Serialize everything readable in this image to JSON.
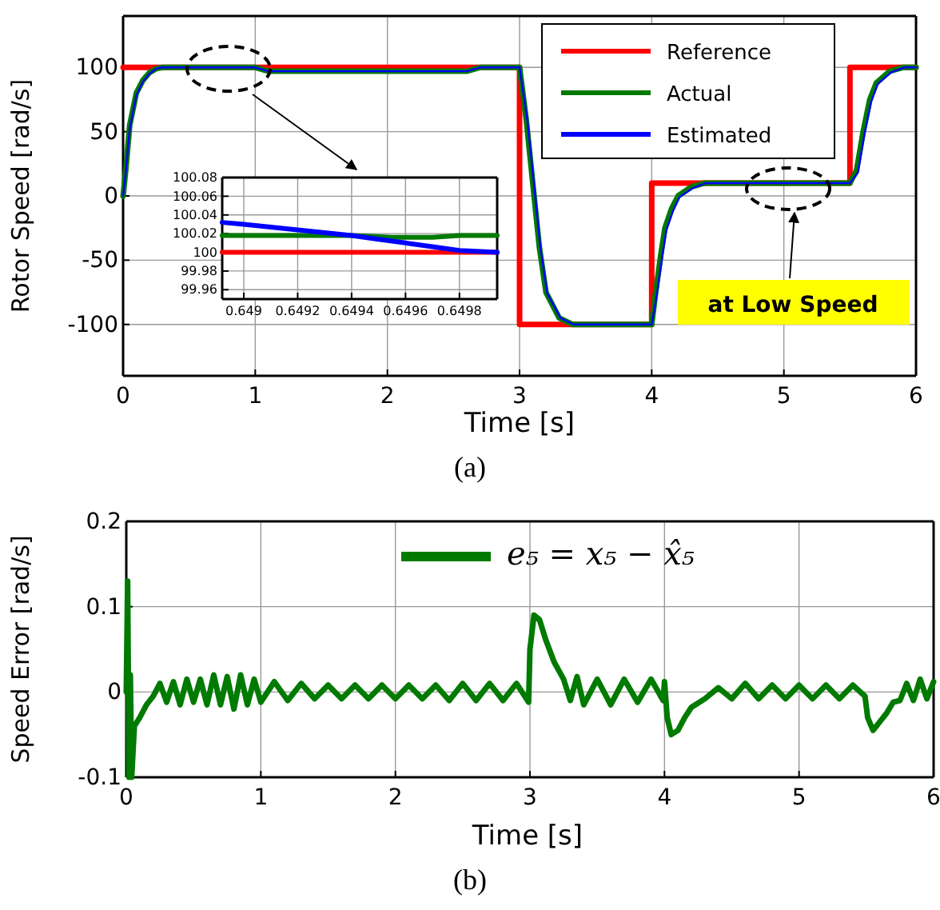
{
  "chart_data": [
    {
      "type": "line",
      "xlabel": "Time [s]",
      "ylabel": "Rotor Speed [rad/s]",
      "xlim": [
        0,
        6
      ],
      "ylim": [
        -140,
        140
      ],
      "xticks": [
        0,
        1,
        2,
        3,
        4,
        5,
        6
      ],
      "yticks": [
        -100,
        -50,
        0,
        50,
        100
      ],
      "grid": true,
      "legend": "top right",
      "annotations": [
        "at Low Speed",
        "(a)"
      ],
      "series": [
        {
          "name": "Reference",
          "color": "#ff0000",
          "x": [
            0,
            3,
            3,
            4,
            4,
            5.5,
            5.5,
            6
          ],
          "values": [
            100,
            100,
            -100,
            -100,
            10,
            10,
            100,
            100
          ]
        },
        {
          "name": "Actual",
          "color": "#007a00",
          "x": [
            0,
            0.02,
            0.05,
            0.1,
            0.15,
            0.2,
            0.25,
            0.3,
            0.4,
            1.0,
            1.1,
            2.6,
            2.7,
            3.0,
            3.05,
            3.1,
            3.15,
            3.2,
            3.3,
            3.4,
            3.5,
            4.0,
            4.03,
            4.07,
            4.1,
            4.15,
            4.2,
            4.3,
            4.4,
            5.5,
            5.55,
            5.6,
            5.65,
            5.7,
            5.8,
            5.9,
            6
          ],
          "values": [
            0,
            20,
            55,
            80,
            90,
            96,
            99,
            100,
            100,
            100,
            97,
            97,
            100,
            100,
            60,
            10,
            -40,
            -75,
            -95,
            -100,
            -100,
            -100,
            -75,
            -45,
            -25,
            -10,
            0,
            7,
            10,
            10,
            20,
            50,
            75,
            88,
            97,
            100,
            100
          ]
        },
        {
          "name": "Estimated",
          "color": "#0000ff",
          "x": [
            0,
            0.02,
            0.05,
            0.1,
            0.15,
            0.2,
            0.25,
            0.3,
            0.4,
            1.0,
            1.1,
            2.6,
            2.7,
            3.0,
            3.06,
            3.11,
            3.16,
            3.21,
            3.31,
            3.41,
            3.5,
            4.0,
            4.04,
            4.08,
            4.11,
            4.16,
            4.21,
            4.31,
            4.41,
            5.5,
            5.56,
            5.61,
            5.66,
            5.71,
            5.81,
            5.91,
            6
          ],
          "values": [
            0,
            18,
            52,
            78,
            89,
            95,
            99,
            100,
            100,
            100,
            97,
            97,
            100,
            100,
            58,
            8,
            -42,
            -76,
            -95,
            -100,
            -100,
            -100,
            -76,
            -47,
            -27,
            -12,
            -1,
            6,
            10,
            10,
            18,
            48,
            73,
            87,
            96,
            100,
            100
          ]
        }
      ]
    },
    {
      "type": "line",
      "xlim": [
        0.64892,
        0.64994
      ],
      "ylim": [
        99.95,
        100.08
      ],
      "xticks": [
        0.649,
        0.6492,
        0.6494,
        0.6496,
        0.6498
      ],
      "yticks": [
        99.96,
        99.98,
        100,
        100.02,
        100.04,
        100.06,
        100.08
      ],
      "grid": true,
      "series": [
        {
          "color": "#ff0000",
          "x": [
            0.64892,
            0.64994
          ],
          "values": [
            100,
            100
          ]
        },
        {
          "color": "#007a00",
          "x": [
            0.64892,
            0.6494,
            0.64955,
            0.6497,
            0.6498,
            0.64994
          ],
          "values": [
            100.018,
            100.018,
            100.016,
            100.016,
            100.018,
            100.018
          ]
        },
        {
          "color": "#0000ff",
          "x": [
            0.64892,
            0.649,
            0.6491,
            0.6492,
            0.6493,
            0.6494,
            0.6495,
            0.6496,
            0.6497,
            0.6498,
            0.64994
          ],
          "values": [
            100.032,
            100.03,
            100.027,
            100.024,
            100.021,
            100.018,
            100.014,
            100.01,
            100.006,
            100.002,
            100
          ]
        }
      ]
    },
    {
      "type": "line",
      "xlabel": "Time [s]",
      "ylabel": "Speed Error [rad/s]",
      "xlim": [
        0,
        6
      ],
      "ylim": [
        -0.1,
        0.2
      ],
      "xticks": [
        0,
        1,
        2,
        3,
        4,
        5,
        6
      ],
      "yticks": [
        -0.1,
        0,
        0.1,
        0.2
      ],
      "grid": true,
      "legend": "top",
      "annotations": [
        "(b)"
      ],
      "series": [
        {
          "name": "e₅ = x₅ − x̂₅",
          "color": "#007a00",
          "x": [
            0,
            0.01,
            0.02,
            0.03,
            0.04,
            0.06,
            0.1,
            0.15,
            0.2,
            0.25,
            0.3,
            0.35,
            0.4,
            0.45,
            0.5,
            0.55,
            0.6,
            0.65,
            0.7,
            0.75,
            0.8,
            0.85,
            0.9,
            0.95,
            1.0,
            1.1,
            1.2,
            1.3,
            1.4,
            1.5,
            1.6,
            1.7,
            1.8,
            1.9,
            2.0,
            2.1,
            2.2,
            2.3,
            2.4,
            2.5,
            2.6,
            2.7,
            2.8,
            2.9,
            2.99,
            3.0,
            3.03,
            3.07,
            3.12,
            3.18,
            3.25,
            3.3,
            3.35,
            3.4,
            3.5,
            3.6,
            3.7,
            3.8,
            3.9,
            3.99,
            4.0,
            4.02,
            4.05,
            4.1,
            4.15,
            4.2,
            4.3,
            4.4,
            4.5,
            4.6,
            4.7,
            4.8,
            4.9,
            5.0,
            5.1,
            5.2,
            5.3,
            5.4,
            5.49,
            5.51,
            5.55,
            5.6,
            5.65,
            5.7,
            5.75,
            5.8,
            5.85,
            5.9,
            5.95,
            6.0
          ],
          "values": [
            0,
            0.13,
            -0.1,
            0.02,
            -0.1,
            -0.04,
            -0.03,
            -0.015,
            -0.005,
            0.01,
            -0.012,
            0.012,
            -0.015,
            0.015,
            -0.012,
            0.015,
            -0.015,
            0.02,
            -0.015,
            0.018,
            -0.02,
            0.02,
            -0.015,
            0.015,
            -0.012,
            0.012,
            -0.01,
            0.01,
            -0.008,
            0.008,
            -0.008,
            0.008,
            -0.008,
            0.008,
            -0.008,
            0.008,
            -0.008,
            0.008,
            -0.01,
            0.01,
            -0.01,
            0.01,
            -0.01,
            0.01,
            -0.012,
            0.05,
            0.09,
            0.085,
            0.06,
            0.035,
            0.015,
            -0.01,
            0.018,
            -0.015,
            0.015,
            -0.015,
            0.015,
            -0.012,
            0.015,
            -0.01,
            0.012,
            -0.03,
            -0.05,
            -0.045,
            -0.03,
            -0.018,
            -0.008,
            0.005,
            -0.008,
            0.01,
            -0.008,
            0.008,
            -0.008,
            0.008,
            -0.008,
            0.008,
            -0.008,
            0.008,
            -0.005,
            -0.03,
            -0.045,
            -0.035,
            -0.025,
            -0.012,
            -0.01,
            0.01,
            -0.01,
            0.015,
            -0.008,
            0.012
          ]
        }
      ]
    }
  ]
}
